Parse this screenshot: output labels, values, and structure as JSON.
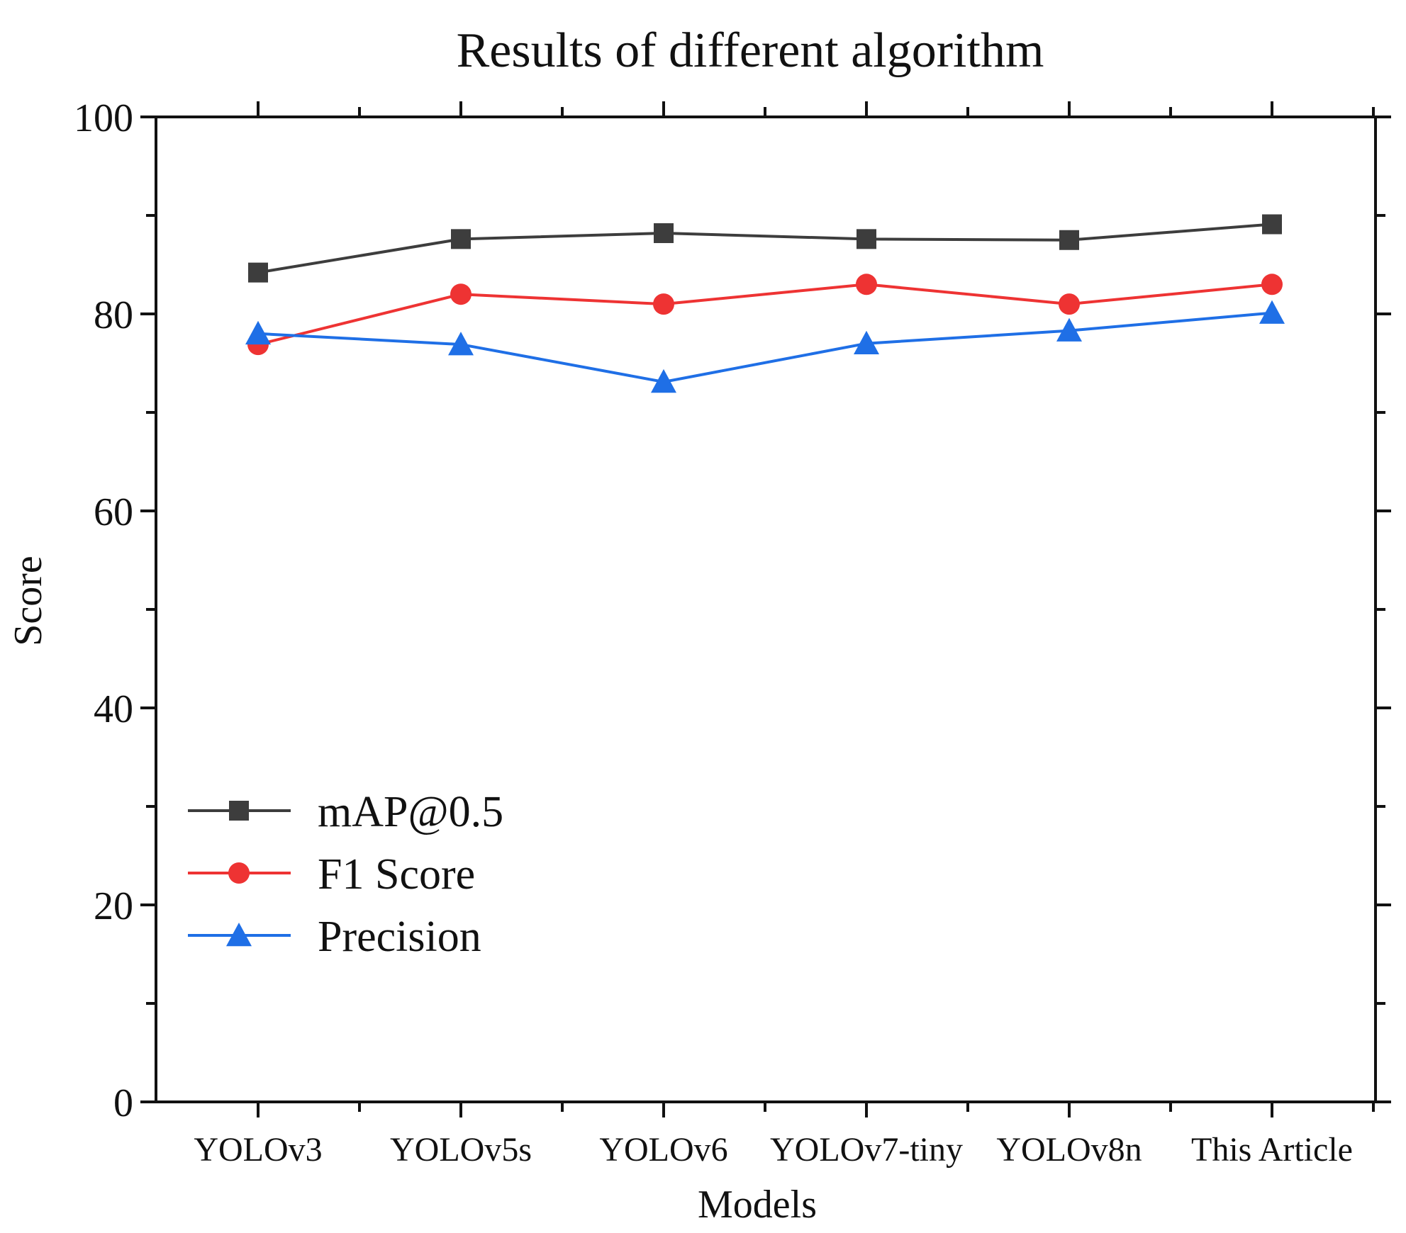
{
  "chart_data": {
    "type": "line",
    "title": "Results of different algorithm",
    "xlabel": "Models",
    "ylabel": "Score",
    "categories": [
      "YOLOv3",
      "YOLOv5s",
      "YOLOv6",
      "YOLOv7-tiny",
      "YOLOv8n",
      "This Article"
    ],
    "ylim": [
      0,
      100
    ],
    "yticks": [
      0,
      20,
      40,
      60,
      80,
      100
    ],
    "yticks_labels": [
      "0",
      "20",
      "40",
      "60",
      "80",
      "100"
    ],
    "legend_position": "lower-left",
    "series": [
      {
        "name": "mAP@0.5",
        "marker": "square",
        "color": "#3d3d3d",
        "values": [
          84.2,
          87.6,
          88.2,
          87.6,
          87.5,
          89.1
        ]
      },
      {
        "name": "F1 Score",
        "marker": "circle",
        "color": "#ee3333",
        "values": [
          76.9,
          82.0,
          81.0,
          83.0,
          81.0,
          83.0
        ]
      },
      {
        "name": "Precision",
        "marker": "triangle",
        "color": "#1f6fe6",
        "values": [
          78.0,
          76.9,
          73.1,
          77.0,
          78.3,
          80.1
        ]
      }
    ]
  }
}
